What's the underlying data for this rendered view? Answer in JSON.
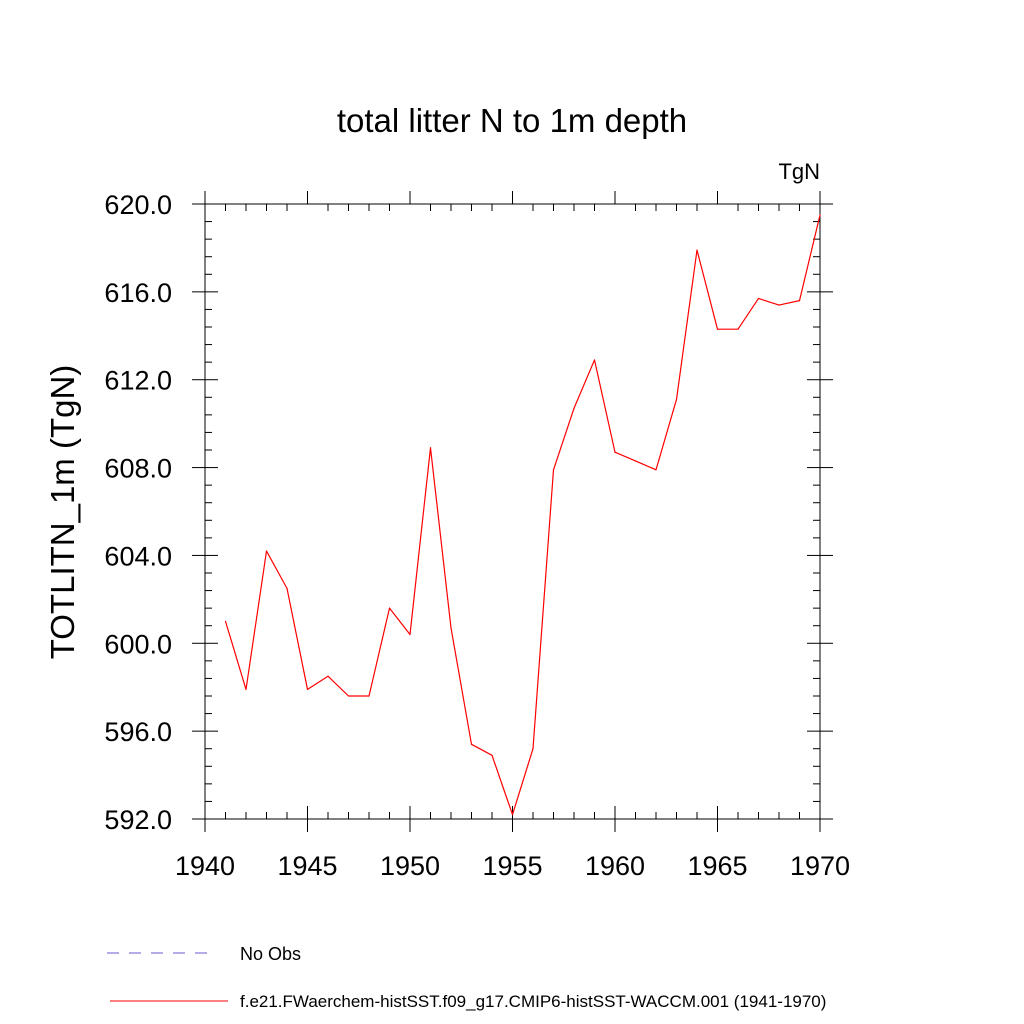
{
  "chart_data": {
    "type": "line",
    "title": "total litter N to 1m depth",
    "units_label": "TgN",
    "ylabel": "TOTLITN_1m  (TgN)",
    "xlabel": "",
    "xlim": [
      1940,
      1970
    ],
    "ylim": [
      592.0,
      620.0
    ],
    "x_ticks": [
      1940,
      1945,
      1950,
      1955,
      1960,
      1965,
      1970
    ],
    "y_ticks": [
      "592.0",
      "596.0",
      "600.0",
      "604.0",
      "608.0",
      "612.0",
      "616.0",
      "620.0"
    ],
    "x_minor_step": 1,
    "y_minor_step": 0.8,
    "grid": false,
    "series": [
      {
        "name": "f.e21.FWaerchem-histSST.f09_g17.CMIP6-histSST-WACCM.001 (1941-1970)",
        "color": "#ff0000",
        "x": [
          1941,
          1942,
          1943,
          1944,
          1945,
          1946,
          1947,
          1948,
          1949,
          1950,
          1951,
          1952,
          1953,
          1954,
          1955,
          1956,
          1957,
          1958,
          1959,
          1960,
          1961,
          1962,
          1963,
          1964,
          1965,
          1966,
          1967,
          1968,
          1969,
          1970
        ],
        "y": [
          601.0,
          597.9,
          604.2,
          602.5,
          597.9,
          598.5,
          597.6,
          597.6,
          601.6,
          600.4,
          608.9,
          600.7,
          595.4,
          594.9,
          592.2,
          595.2,
          607.9,
          610.7,
          612.9,
          608.7,
          608.3,
          607.9,
          611.1,
          617.9,
          614.3,
          614.3,
          615.7,
          615.4,
          615.6,
          619.5
        ]
      }
    ],
    "legend": {
      "placement": "bottom",
      "entries": [
        {
          "label": "No Obs",
          "style": "dashed",
          "color": "#6a5acd"
        },
        {
          "label": "f.e21.FWaerchem-histSST.f09_g17.CMIP6-histSST-WACCM.001 (1941-1970)",
          "style": "solid",
          "color": "#ff0000"
        }
      ]
    }
  }
}
